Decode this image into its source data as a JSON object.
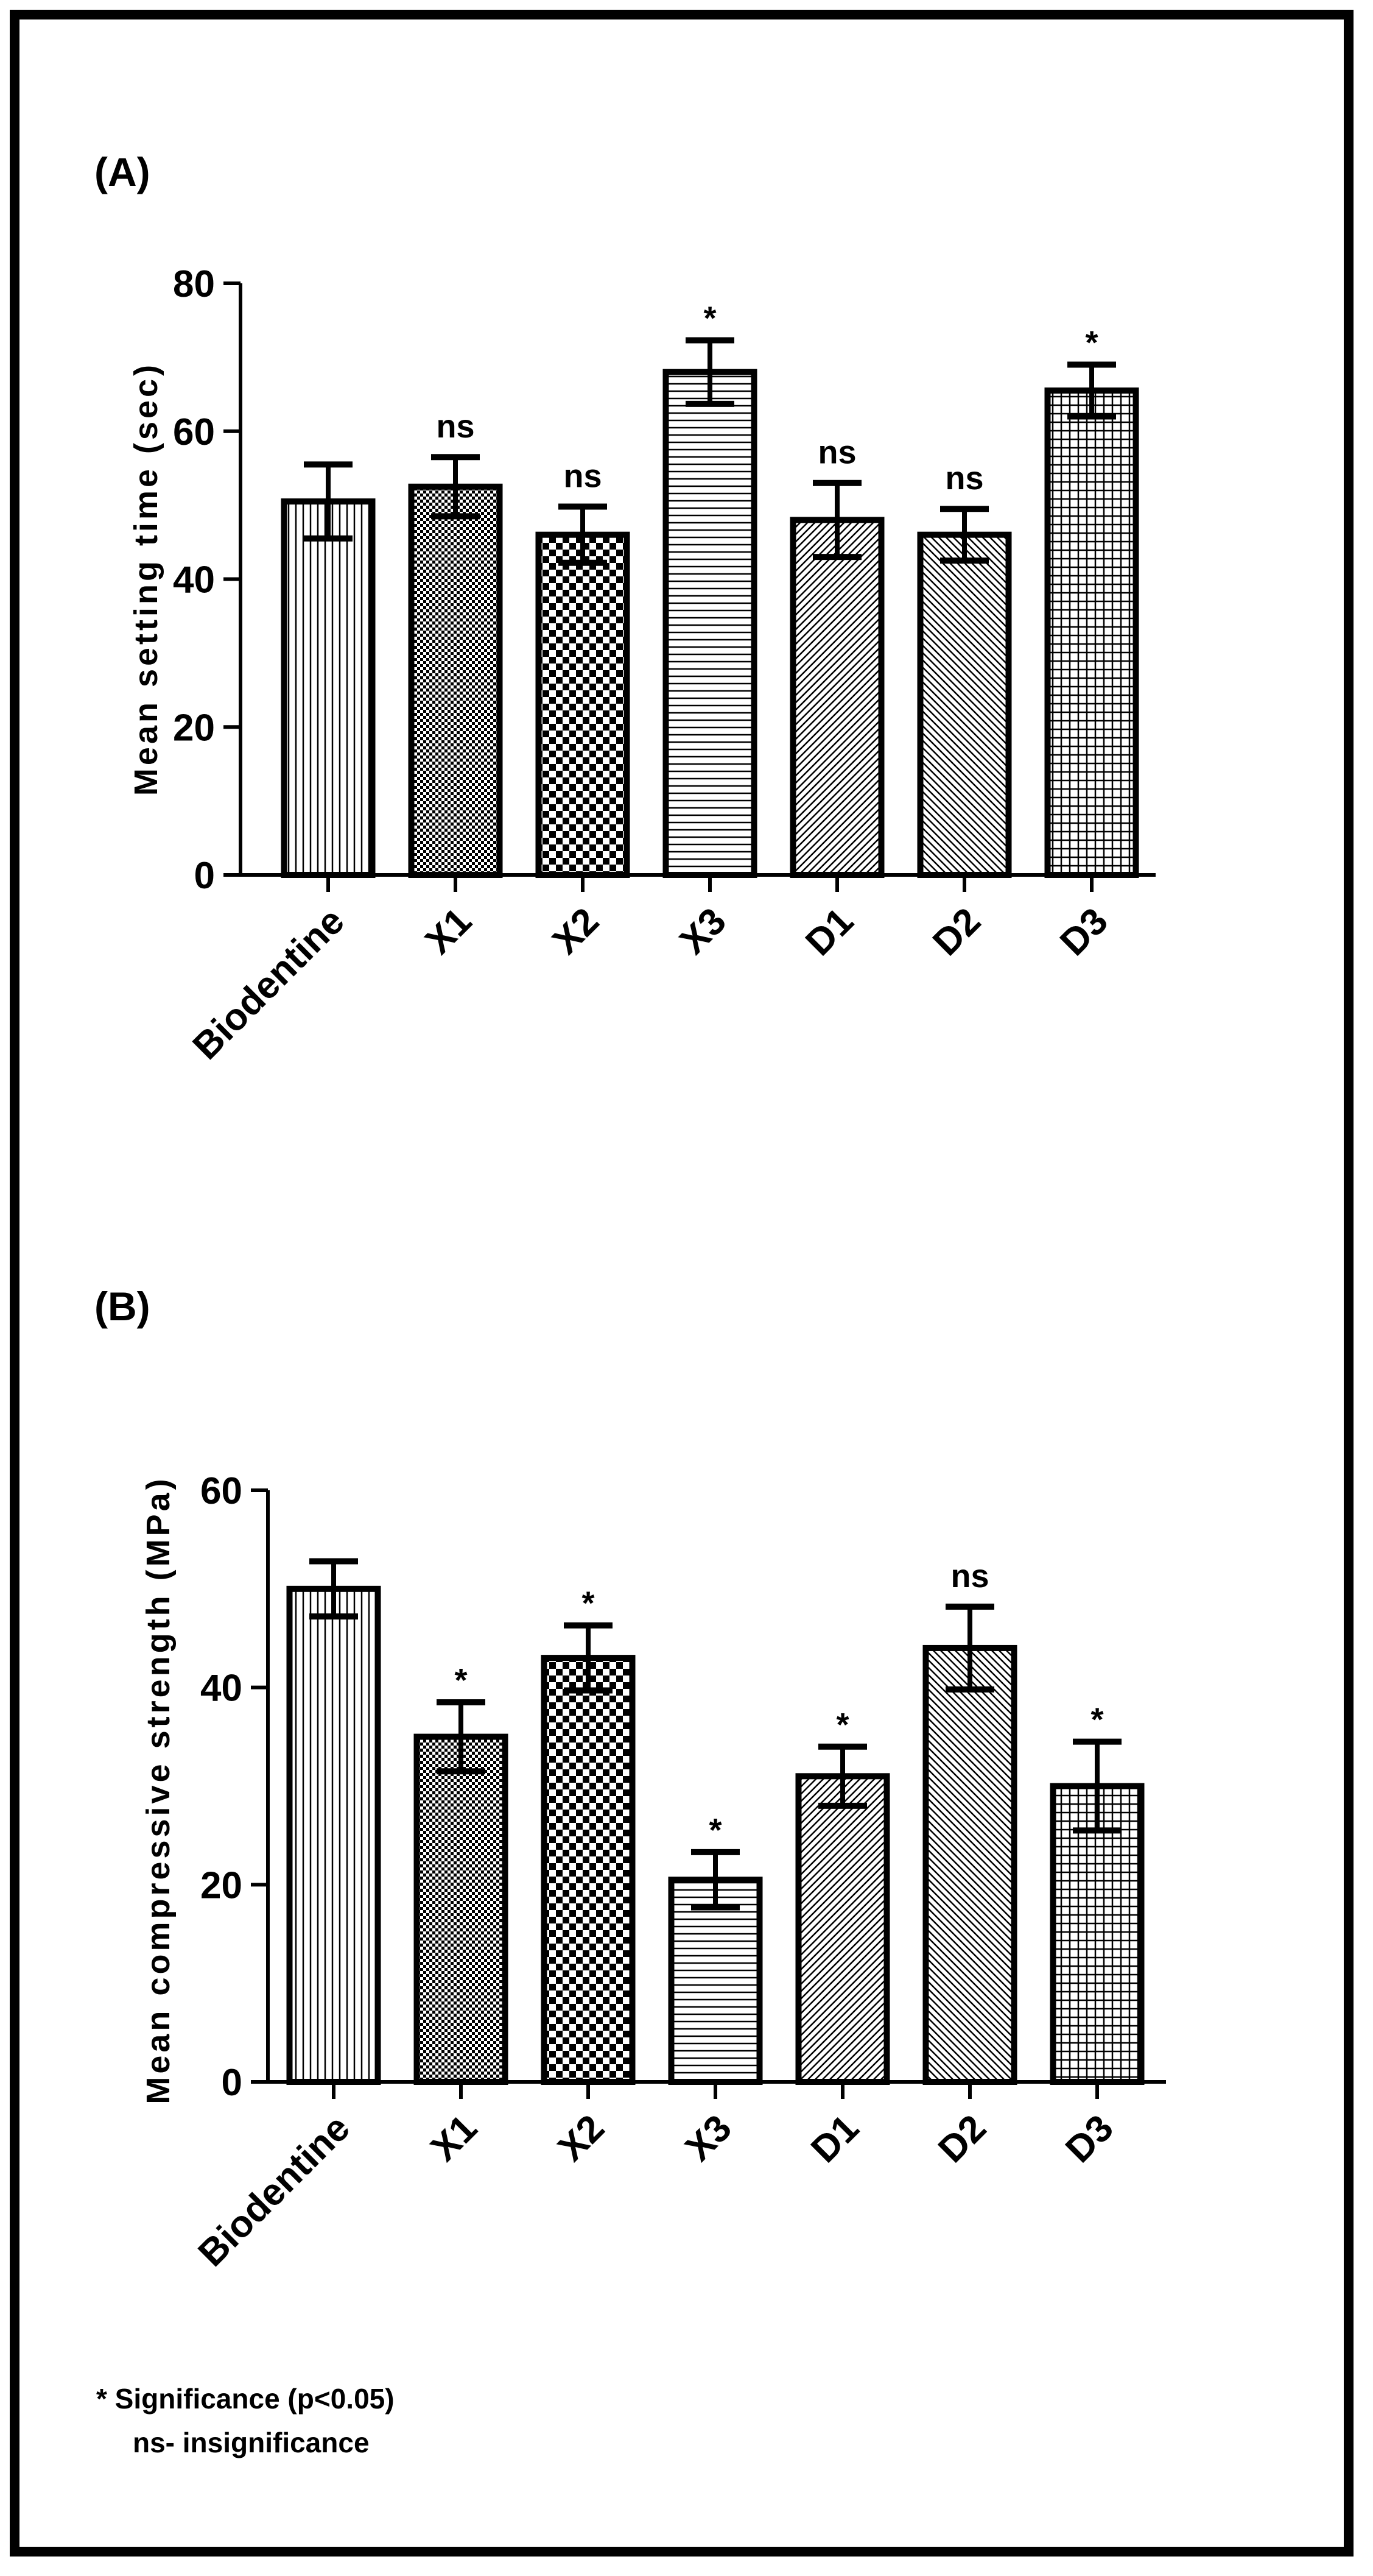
{
  "chart_data": [
    {
      "type": "bar",
      "panel_label": "(A)",
      "title": "",
      "xlabel": "",
      "ylabel": "Mean setting time (sec)",
      "ylim": [
        0,
        80
      ],
      "yticks": [
        0,
        20,
        40,
        60,
        80
      ],
      "categories": [
        "Biodentine",
        "X1",
        "X2",
        "X3",
        "D1",
        "D2",
        "D3"
      ],
      "values": [
        50.5,
        52.5,
        46,
        68,
        48,
        46,
        65.5
      ],
      "errors": [
        5,
        4,
        3.8,
        4.3,
        5,
        3.5,
        3.5
      ],
      "annotations": [
        "",
        "ns",
        "ns",
        "*",
        "ns",
        "ns",
        "*"
      ],
      "patterns": [
        "vlines",
        "fine-check",
        "coarse-check",
        "hlines",
        "diag-fwd",
        "diag-back",
        "grid"
      ]
    },
    {
      "type": "bar",
      "panel_label": "(B)",
      "title": "",
      "xlabel": "",
      "ylabel": "Mean compressive strength (MPa)",
      "ylim": [
        0,
        60
      ],
      "yticks": [
        0,
        20,
        40,
        60
      ],
      "categories": [
        "Biodentine",
        "X1",
        "X2",
        "X3",
        "D1",
        "D2",
        "D3"
      ],
      "values": [
        50,
        35,
        43,
        20.5,
        31,
        44,
        30
      ],
      "errors": [
        2.8,
        3.5,
        3.3,
        2.8,
        3,
        4.2,
        4.5
      ],
      "annotations": [
        "",
        "*",
        "*",
        "*",
        "*",
        "ns",
        "*"
      ],
      "patterns": [
        "vlines",
        "fine-check",
        "coarse-check",
        "hlines",
        "diag-fwd",
        "diag-back",
        "grid"
      ]
    }
  ],
  "footnote": {
    "line1": "* Significance (p<0.05)",
    "line2": "ns- insignificance"
  }
}
